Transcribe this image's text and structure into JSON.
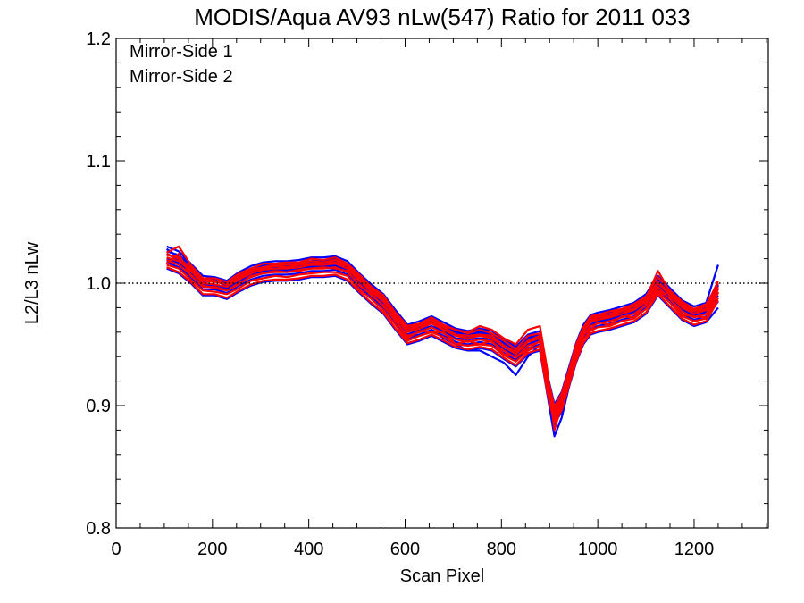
{
  "chart_data": {
    "type": "line",
    "title": "MODIS/Aqua AV93 nLw(547) Ratio for 2011 033",
    "xlabel": "Scan Pixel",
    "ylabel": "L2/L3 nLw",
    "xlim": [
      0,
      1354
    ],
    "ylim": [
      0.8,
      1.2
    ],
    "x_ticks": [
      0,
      200,
      400,
      600,
      800,
      1000,
      1200
    ],
    "x_tick_labels": [
      "0",
      "200",
      "400",
      "600",
      "800",
      "1000",
      "1200"
    ],
    "y_ticks": [
      0.8,
      0.9,
      1.0,
      1.1,
      1.2
    ],
    "y_tick_labels": [
      "0.8",
      "0.9",
      "1.0",
      "1.1",
      "1.2"
    ],
    "reference_line": {
      "y": 1.0,
      "style": "dotted",
      "color": "#000000"
    },
    "legend_position": "top-left",
    "x": [
      105,
      130,
      155,
      180,
      205,
      230,
      255,
      280,
      305,
      330,
      355,
      380,
      405,
      430,
      455,
      480,
      505,
      530,
      555,
      580,
      605,
      630,
      655,
      680,
      705,
      730,
      755,
      780,
      805,
      830,
      855,
      880,
      895,
      910,
      925,
      940,
      955,
      970,
      985,
      1000,
      1025,
      1050,
      1075,
      1100,
      1125,
      1150,
      1175,
      1200,
      1225,
      1250
    ],
    "baseline": [
      1.022,
      1.018,
      1.01,
      1.0,
      1.0,
      0.997,
      1.003,
      1.008,
      1.011,
      1.012,
      1.012,
      1.013,
      1.015,
      1.015,
      1.016,
      1.012,
      1.002,
      0.993,
      0.985,
      0.972,
      0.96,
      0.963,
      0.967,
      0.962,
      0.957,
      0.955,
      0.957,
      0.955,
      0.948,
      0.942,
      0.952,
      0.955,
      0.92,
      0.895,
      0.905,
      0.925,
      0.945,
      0.96,
      0.968,
      0.97,
      0.972,
      0.975,
      0.978,
      0.985,
      1.0,
      0.99,
      0.98,
      0.975,
      0.978,
      0.995
    ],
    "series": [
      {
        "name": "Mirror-Side 1",
        "color": "#0000ff",
        "values": [
          [
            1.03,
            1.026,
            1.016,
            1.006,
            1.005,
            1.002,
            1.009,
            1.014,
            1.017,
            1.018,
            1.018,
            1.019,
            1.021,
            1.021,
            1.022,
            1.018,
            1.008,
            0.999,
            0.991,
            0.978,
            0.966,
            0.969,
            0.973,
            0.968,
            0.963,
            0.961,
            0.963,
            0.961,
            0.954,
            0.948,
            0.958,
            0.961,
            0.926,
            0.901,
            0.911,
            0.931,
            0.951,
            0.966,
            0.974,
            0.976,
            0.978,
            0.981,
            0.984,
            0.991,
            1.006,
            0.996,
            0.986,
            0.981,
            0.984,
            1.015
          ],
          [
            1.026,
            1.023,
            1.015,
            1.003,
            1.003,
            1.001,
            1.007,
            1.011,
            1.015,
            1.016,
            1.015,
            1.017,
            1.018,
            1.019,
            1.02,
            1.015,
            1.007,
            0.996,
            0.989,
            0.975,
            0.964,
            0.966,
            0.971,
            0.965,
            0.961,
            0.958,
            0.961,
            0.958,
            0.952,
            0.945,
            0.956,
            0.958,
            0.924,
            0.898,
            0.909,
            0.928,
            0.949,
            0.963,
            0.972,
            0.973,
            0.976,
            0.978,
            0.982,
            0.988,
            1.004,
            0.993,
            0.984,
            0.978,
            0.982,
            0.998
          ],
          [
            1.024,
            1.019,
            1.012,
            1.001,
            1.002,
            0.998,
            1.005,
            1.009,
            1.013,
            1.013,
            1.014,
            1.014,
            1.017,
            1.016,
            1.018,
            1.013,
            1.004,
            0.994,
            0.987,
            0.973,
            0.962,
            0.964,
            0.969,
            0.963,
            0.959,
            0.956,
            0.959,
            0.956,
            0.95,
            0.943,
            0.954,
            0.956,
            0.922,
            0.896,
            0.907,
            0.926,
            0.947,
            0.961,
            0.97,
            0.971,
            0.974,
            0.976,
            0.98,
            0.986,
            1.002,
            0.991,
            0.982,
            0.976,
            0.98,
            0.996
          ],
          [
            1.02,
            1.017,
            1.008,
            0.999,
            0.998,
            0.996,
            1.001,
            1.007,
            1.009,
            1.011,
            1.01,
            1.012,
            1.013,
            1.014,
            1.014,
            1.011,
            1.0,
            0.992,
            0.983,
            0.971,
            0.958,
            0.962,
            0.965,
            0.961,
            0.955,
            0.954,
            0.955,
            0.954,
            0.946,
            0.941,
            0.95,
            0.954,
            0.918,
            0.894,
            0.903,
            0.924,
            0.943,
            0.959,
            0.966,
            0.969,
            0.97,
            0.974,
            0.976,
            0.984,
            0.998,
            0.989,
            0.978,
            0.974,
            0.976,
            0.99
          ],
          [
            1.017,
            1.013,
            1.005,
            0.995,
            0.995,
            0.992,
            0.998,
            1.003,
            1.006,
            1.007,
            1.007,
            1.008,
            1.01,
            1.01,
            1.011,
            1.007,
            0.997,
            0.988,
            0.98,
            0.967,
            0.955,
            0.958,
            0.962,
            0.957,
            0.952,
            0.95,
            0.952,
            0.95,
            0.943,
            0.937,
            0.947,
            0.95,
            0.915,
            0.89,
            0.9,
            0.92,
            0.94,
            0.955,
            0.963,
            0.965,
            0.967,
            0.97,
            0.973,
            0.98,
            0.995,
            0.985,
            0.975,
            0.97,
            0.973,
            0.985
          ],
          [
            1.012,
            1.008,
            1.0,
            0.99,
            0.99,
            0.987,
            0.993,
            0.998,
            1.001,
            1.002,
            1.002,
            1.003,
            1.005,
            1.005,
            1.006,
            1.002,
            0.992,
            0.983,
            0.975,
            0.962,
            0.95,
            0.953,
            0.957,
            0.952,
            0.947,
            0.945,
            0.947,
            0.945,
            0.938,
            0.932,
            0.942,
            0.945,
            0.91,
            0.885,
            0.895,
            0.915,
            0.935,
            0.95,
            0.958,
            0.96,
            0.962,
            0.965,
            0.968,
            0.975,
            0.99,
            0.98,
            0.97,
            0.965,
            0.968,
            0.98
          ],
          [
            1.018,
            1.016,
            1.007,
            0.998,
            0.999,
            0.995,
            1.0,
            1.006,
            1.01,
            1.01,
            1.011,
            1.011,
            1.014,
            1.013,
            1.015,
            1.009,
            0.999,
            0.99,
            0.982,
            0.968,
            0.956,
            0.958,
            0.962,
            0.955,
            0.95,
            0.945,
            0.945,
            0.94,
            0.935,
            0.925,
            0.94,
            0.95,
            0.91,
            0.875,
            0.89,
            0.915,
            0.94,
            0.958,
            0.966,
            0.968,
            0.971,
            0.974,
            0.977,
            0.984,
            0.999,
            0.989,
            0.979,
            0.974,
            0.977,
            0.992
          ],
          [
            1.028,
            1.021,
            1.013,
            1.004,
            1.003,
            1.0,
            1.006,
            1.012,
            1.014,
            1.015,
            1.016,
            1.016,
            1.018,
            1.018,
            1.019,
            1.015,
            1.005,
            0.996,
            0.988,
            0.975,
            0.963,
            0.966,
            0.97,
            0.965,
            0.96,
            0.958,
            0.96,
            0.958,
            0.951,
            0.945,
            0.955,
            0.958,
            0.923,
            0.898,
            0.908,
            0.928,
            0.948,
            0.963,
            0.971,
            0.973,
            0.975,
            0.978,
            0.981,
            0.988,
            1.003,
            0.993,
            0.983,
            0.978,
            0.981,
            0.999
          ]
        ]
      },
      {
        "name": "Mirror-Side 2",
        "color": "#ff0000",
        "values": [
          [
            1.025,
            1.03,
            1.015,
            1.004,
            1.004,
            1.001,
            1.008,
            1.012,
            1.016,
            1.016,
            1.017,
            1.017,
            1.02,
            1.019,
            1.021,
            1.016,
            1.007,
            0.997,
            0.99,
            0.976,
            0.965,
            0.967,
            0.972,
            0.966,
            0.962,
            0.959,
            0.962,
            0.959,
            0.953,
            0.946,
            0.957,
            0.959,
            0.925,
            0.899,
            0.91,
            0.929,
            0.95,
            0.964,
            0.973,
            0.974,
            0.977,
            0.979,
            0.983,
            0.989,
            1.005,
            0.994,
            0.985,
            0.979,
            0.983,
            1.0
          ],
          [
            1.023,
            1.021,
            1.011,
            1.002,
            1.001,
            0.999,
            1.004,
            1.01,
            1.012,
            1.014,
            1.013,
            1.015,
            1.016,
            1.017,
            1.017,
            1.014,
            1.003,
            0.995,
            0.986,
            0.974,
            0.961,
            0.965,
            0.968,
            0.964,
            0.958,
            0.957,
            0.958,
            0.957,
            0.949,
            0.944,
            0.953,
            0.957,
            0.921,
            0.897,
            0.906,
            0.927,
            0.946,
            0.962,
            0.969,
            0.972,
            0.973,
            0.977,
            0.979,
            0.987,
            1.001,
            0.992,
            0.981,
            0.977,
            0.979,
            0.997
          ],
          [
            1.021,
            1.018,
            1.01,
            1.0,
            0.999,
            0.997,
            1.003,
            1.008,
            1.011,
            1.012,
            1.012,
            1.013,
            1.015,
            1.015,
            1.016,
            1.012,
            1.002,
            0.993,
            0.985,
            0.972,
            0.96,
            0.963,
            0.967,
            0.962,
            0.957,
            0.955,
            0.957,
            0.955,
            0.948,
            0.942,
            0.952,
            0.955,
            0.92,
            0.895,
            0.905,
            0.925,
            0.945,
            0.96,
            0.968,
            0.97,
            0.972,
            0.975,
            0.978,
            0.985,
            1.0,
            0.99,
            0.98,
            0.975,
            0.978,
            0.995
          ],
          [
            1.019,
            1.015,
            1.007,
            0.997,
            0.997,
            0.994,
            1.0,
            1.005,
            1.008,
            1.009,
            1.009,
            1.01,
            1.012,
            1.012,
            1.013,
            1.009,
            0.999,
            0.99,
            0.982,
            0.969,
            0.957,
            0.96,
            0.964,
            0.959,
            0.954,
            0.952,
            0.954,
            0.952,
            0.945,
            0.939,
            0.949,
            0.952,
            0.917,
            0.892,
            0.902,
            0.922,
            0.942,
            0.957,
            0.965,
            0.967,
            0.969,
            0.972,
            0.975,
            0.982,
            0.997,
            0.987,
            0.977,
            0.972,
            0.975,
            0.992
          ],
          [
            1.015,
            1.012,
            1.003,
            0.994,
            0.993,
            0.991,
            0.996,
            1.002,
            1.004,
            1.006,
            1.005,
            1.007,
            1.008,
            1.009,
            1.009,
            1.006,
            0.995,
            0.987,
            0.978,
            0.966,
            0.953,
            0.957,
            0.96,
            0.956,
            0.95,
            0.949,
            0.95,
            0.949,
            0.941,
            0.936,
            0.945,
            0.949,
            0.913,
            0.889,
            0.898,
            0.919,
            0.938,
            0.954,
            0.961,
            0.964,
            0.965,
            0.969,
            0.971,
            0.979,
            0.993,
            0.984,
            0.973,
            0.969,
            0.971,
            0.988
          ],
          [
            1.013,
            1.009,
            1.001,
            0.991,
            0.991,
            0.988,
            0.994,
            0.999,
            1.002,
            1.003,
            1.003,
            1.004,
            1.006,
            1.006,
            1.007,
            1.003,
            0.993,
            0.984,
            0.976,
            0.963,
            0.951,
            0.954,
            0.958,
            0.953,
            0.948,
            0.946,
            0.948,
            0.946,
            0.939,
            0.933,
            0.943,
            0.946,
            0.911,
            0.886,
            0.896,
            0.916,
            0.936,
            0.951,
            0.959,
            0.961,
            0.963,
            0.966,
            0.969,
            0.976,
            0.991,
            0.981,
            0.971,
            0.966,
            0.969,
            0.986
          ],
          [
            1.024,
            1.02,
            1.013,
            1.003,
            1.002,
            0.999,
            1.006,
            1.011,
            1.013,
            1.015,
            1.015,
            1.016,
            1.018,
            1.017,
            1.019,
            1.015,
            1.005,
            0.996,
            0.988,
            0.975,
            0.963,
            0.966,
            0.97,
            0.965,
            0.962,
            0.96,
            0.965,
            0.962,
            0.955,
            0.95,
            0.962,
            0.965,
            0.93,
            0.88,
            0.9,
            0.92,
            0.948,
            0.963,
            0.971,
            0.973,
            0.975,
            0.978,
            0.981,
            0.988,
            1.01,
            0.993,
            0.983,
            0.978,
            0.981,
            1.002
          ],
          [
            1.016,
            1.024,
            1.006,
            0.998,
            0.996,
            0.994,
            0.999,
            1.006,
            1.008,
            1.01,
            1.009,
            1.011,
            1.012,
            1.013,
            1.012,
            1.01,
            0.998,
            0.991,
            0.981,
            0.97,
            0.955,
            0.961,
            0.96,
            0.96,
            0.95,
            0.953,
            0.95,
            0.953,
            0.942,
            0.94,
            0.946,
            0.953,
            0.914,
            0.893,
            0.899,
            0.923,
            0.939,
            0.958,
            0.962,
            0.968,
            0.966,
            0.973,
            0.972,
            0.983,
            0.994,
            0.988,
            0.974,
            0.973,
            0.972,
            0.993
          ]
        ]
      }
    ]
  }
}
